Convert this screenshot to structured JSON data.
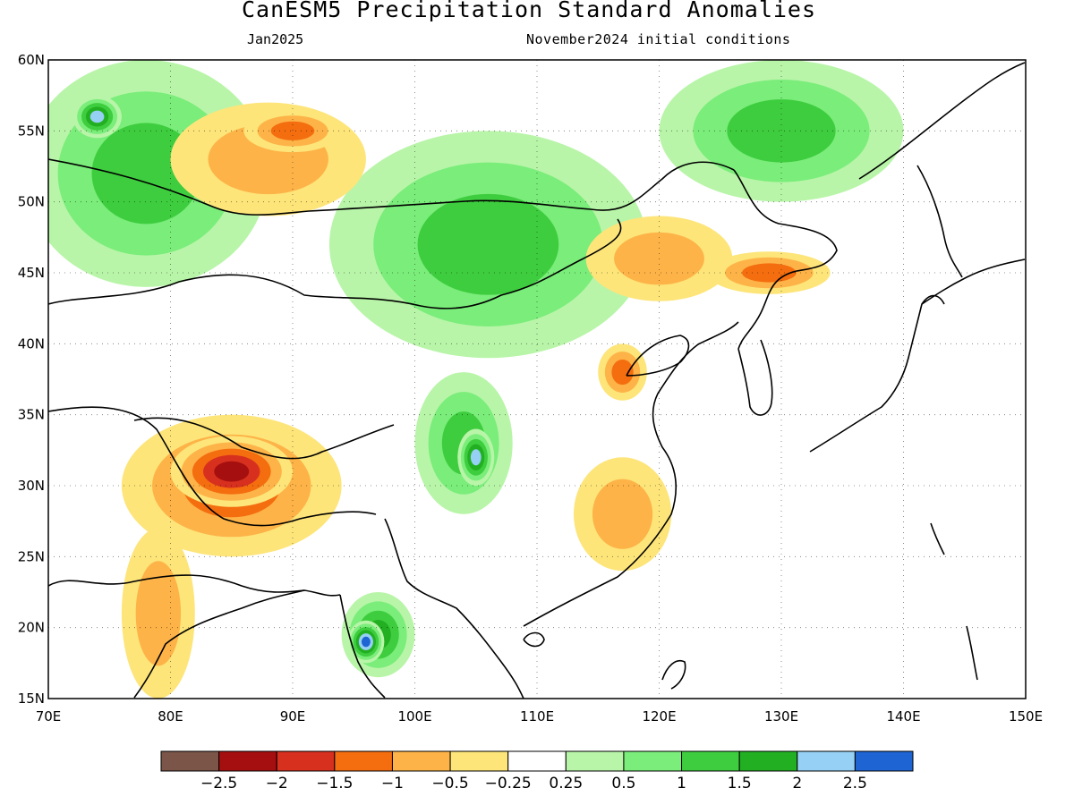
{
  "title": "CanESM5 Precipitation Standard Anomalies",
  "subtitle_left": "Jan2025",
  "subtitle_right": "November2024 initial conditions",
  "map": {
    "lat_labels": [
      "60N",
      "55N",
      "50N",
      "45N",
      "40N",
      "35N",
      "30N",
      "25N",
      "20N",
      "15N"
    ],
    "lon_labels": [
      "70E",
      "80E",
      "90E",
      "100E",
      "110E",
      "120E",
      "130E",
      "140E",
      "150E"
    ],
    "lon_range": [
      70,
      150
    ],
    "lat_range": [
      15,
      60
    ],
    "grid": "dotted"
  },
  "colorbar": {
    "colors": [
      "#7a5548",
      "#a50f0f",
      "#d7301f",
      "#f46d0f",
      "#fdb347",
      "#fde57a",
      "#ffffff",
      "#b8f5a8",
      "#7aed7a",
      "#3ecd3e",
      "#22b022",
      "#96d0f5",
      "#1e64d2"
    ],
    "labels": [
      "−2.5",
      "−2",
      "−1.5",
      "−1",
      "−0.5",
      "−0.25",
      "0.25",
      "0.5",
      "1",
      "1.5",
      "2",
      "2.5"
    ]
  },
  "anomalies": [
    {
      "lon": 106,
      "lat": 47,
      "rx": 13,
      "ry": 8,
      "level": 1
    },
    {
      "lon": 78,
      "lat": 52,
      "rx": 10,
      "ry": 8,
      "level": 1
    },
    {
      "lon": 130,
      "lat": 55,
      "rx": 10,
      "ry": 5,
      "level": 1
    },
    {
      "lon": 88,
      "lat": 53,
      "rx": 8,
      "ry": 4,
      "level": -0.5
    },
    {
      "lon": 90,
      "lat": 55,
      "rx": 4,
      "ry": 1.5,
      "level": -1
    },
    {
      "lon": 120,
      "lat": 46,
      "rx": 6,
      "ry": 3,
      "level": -0.5
    },
    {
      "lon": 129,
      "lat": 45,
      "rx": 5,
      "ry": 1.5,
      "level": -1
    },
    {
      "lon": 85,
      "lat": 30,
      "rx": 9,
      "ry": 5,
      "level": -1
    },
    {
      "lon": 85,
      "lat": 31,
      "rx": 5,
      "ry": 2.5,
      "level": -2
    },
    {
      "lon": 79,
      "lat": 21,
      "rx": 3,
      "ry": 6,
      "level": -0.5
    },
    {
      "lon": 104,
      "lat": 33,
      "rx": 4,
      "ry": 5,
      "level": 1
    },
    {
      "lon": 105,
      "lat": 32,
      "rx": 1.5,
      "ry": 2,
      "level": 2
    },
    {
      "lon": 97,
      "lat": 19.5,
      "rx": 3,
      "ry": 3,
      "level": 1.5
    },
    {
      "lon": 96,
      "lat": 19,
      "rx": 1.5,
      "ry": 1.5,
      "level": 2.5
    },
    {
      "lon": 117,
      "lat": 28,
      "rx": 4,
      "ry": 4,
      "level": -0.5
    },
    {
      "lon": 117,
      "lat": 38,
      "rx": 2,
      "ry": 2,
      "level": -1
    },
    {
      "lon": 74,
      "lat": 56,
      "rx": 2,
      "ry": 1.5,
      "level": 2
    }
  ]
}
